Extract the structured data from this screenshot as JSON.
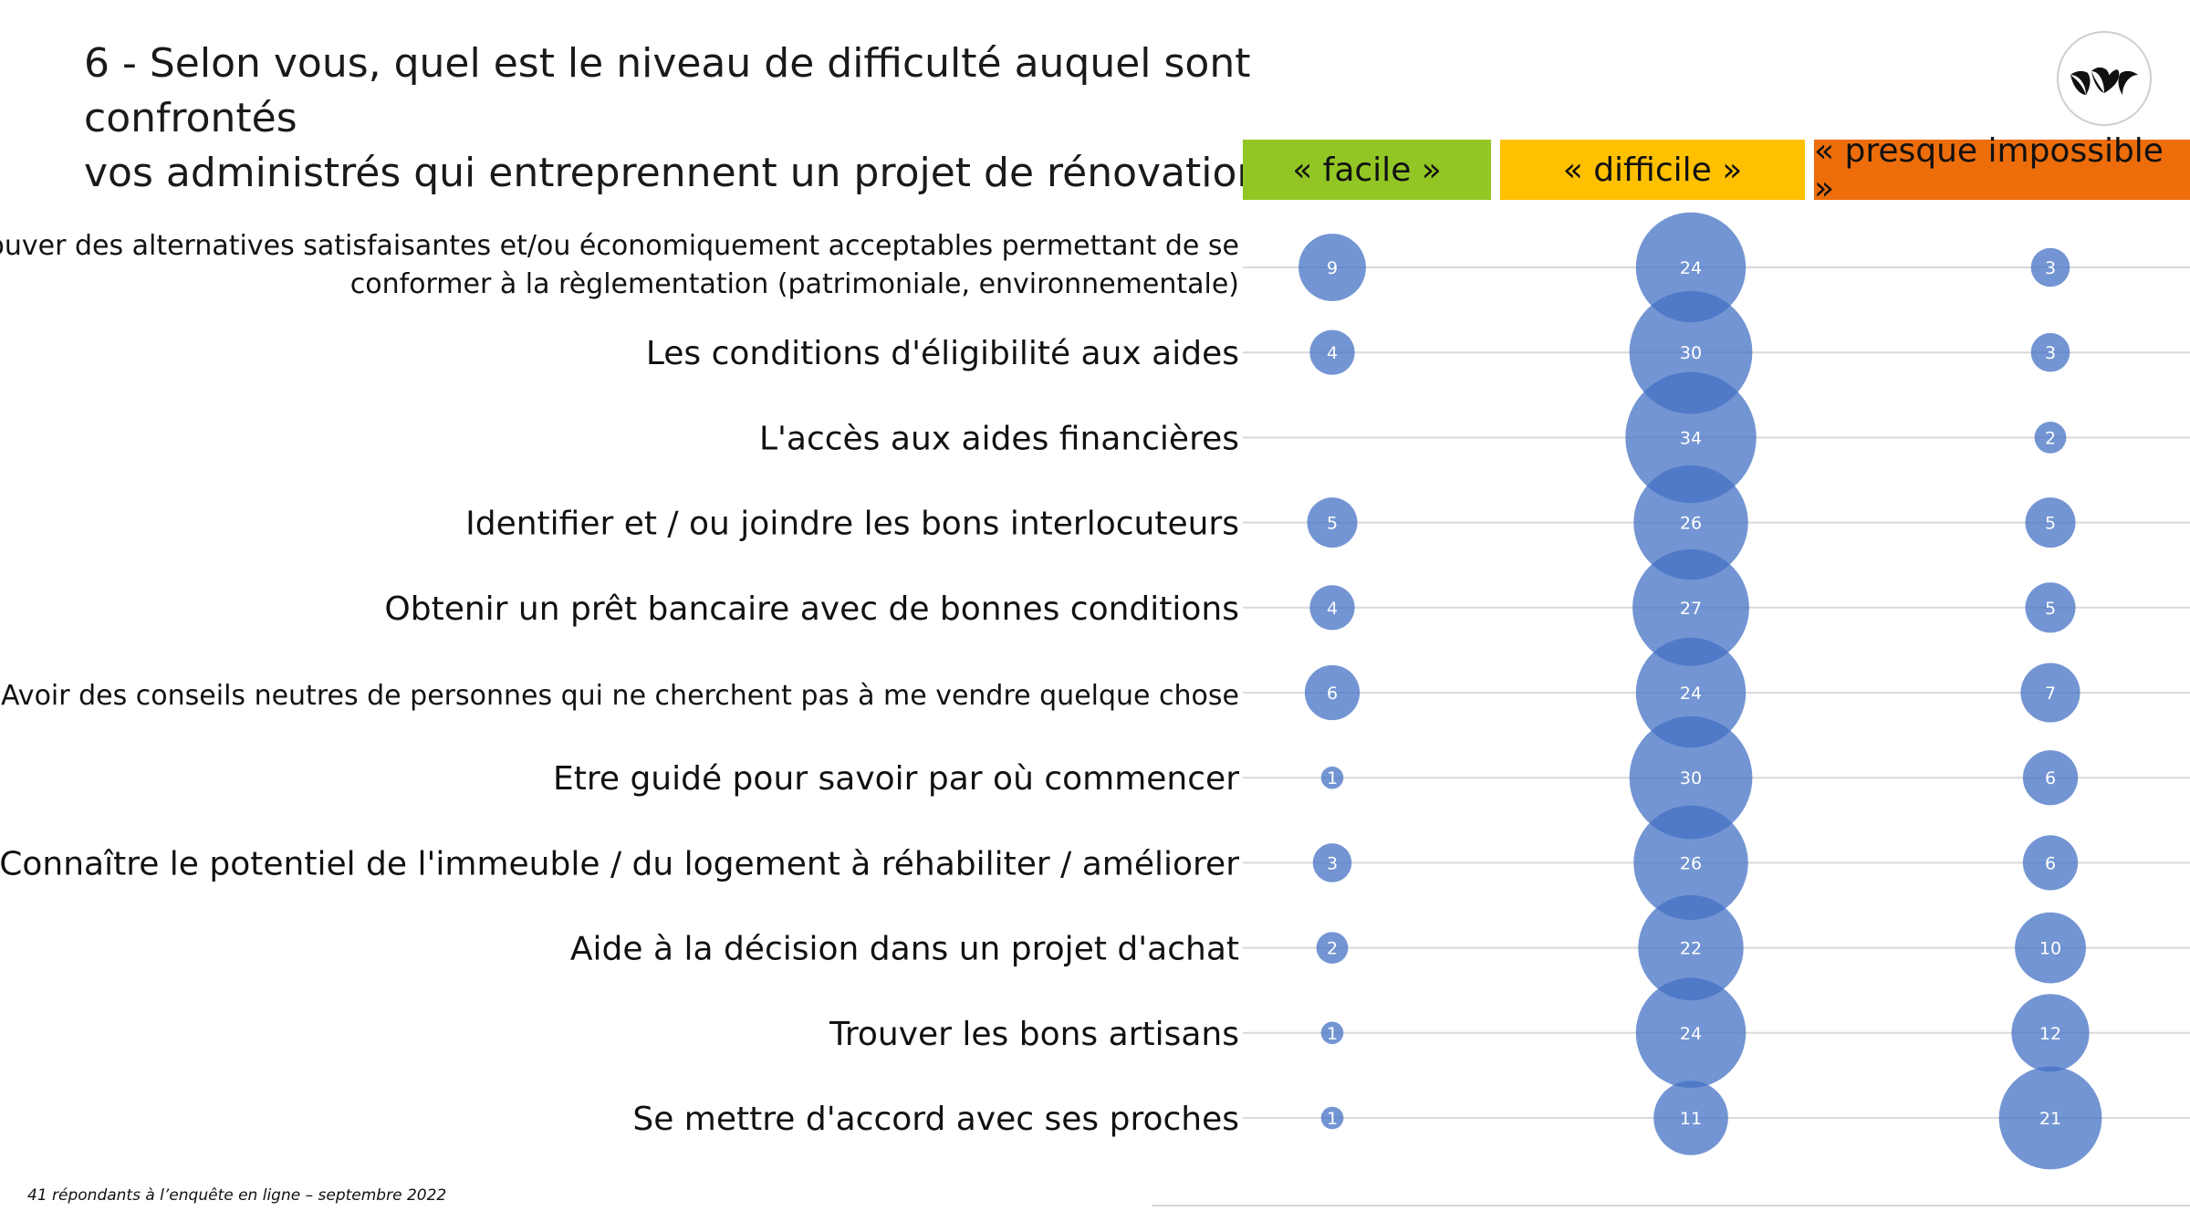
{
  "title_line1": "6 - Selon vous, quel est le niveau de difficulté auquel sont confrontés",
  "title_line2": "vos administrés qui entreprennent un projet de rénovation ?",
  "logo_icon": "leaves-logo-icon",
  "footnote": "41 répondants à l’enquête en ligne – septembre 2022",
  "colors": {
    "bubble": "#4472C4",
    "facile": "#92C624",
    "difficile": "#FFC000",
    "impossible": "#ED6D0B",
    "grid": "#d9d9d9"
  },
  "chart_data": {
    "type": "bubble",
    "categories": [
      "« facile »",
      "« difficile »",
      "« presque impossible »"
    ],
    "rows": [
      {
        "label": [
          "Trouver des alternatives satisfaisantes et/ou économiquement acceptables permettant de se",
          "conformer à la règlementation (patrimoniale, environnementale)"
        ],
        "values": [
          9,
          24,
          3
        ]
      },
      {
        "label": [
          "Les conditions d'éligibilité aux aides"
        ],
        "values": [
          4,
          30,
          3
        ]
      },
      {
        "label": [
          "L'accès aux aides financières"
        ],
        "values": [
          null,
          34,
          2
        ]
      },
      {
        "label": [
          "Identifier et / ou joindre les bons interlocuteurs"
        ],
        "values": [
          5,
          26,
          5
        ]
      },
      {
        "label": [
          "Obtenir un prêt bancaire avec de bonnes conditions"
        ],
        "values": [
          4,
          27,
          5
        ]
      },
      {
        "label": [
          "Avoir des conseils neutres de personnes qui ne cherchent pas à me vendre quelque chose"
        ],
        "values": [
          6,
          24,
          7
        ]
      },
      {
        "label": [
          "Etre guidé pour savoir par où commencer"
        ],
        "values": [
          1,
          30,
          6
        ]
      },
      {
        "label": [
          "Connaître le potentiel de l'immeuble / du logement à réhabiliter / améliorer"
        ],
        "values": [
          3,
          26,
          6
        ]
      },
      {
        "label": [
          "Aide à la décision dans un projet d'achat"
        ],
        "values": [
          2,
          22,
          10
        ]
      },
      {
        "label": [
          "Trouver les bons artisans"
        ],
        "values": [
          1,
          24,
          12
        ]
      },
      {
        "label": [
          "Se mettre d'accord avec ses proches"
        ],
        "values": [
          1,
          11,
          21
        ]
      }
    ]
  }
}
